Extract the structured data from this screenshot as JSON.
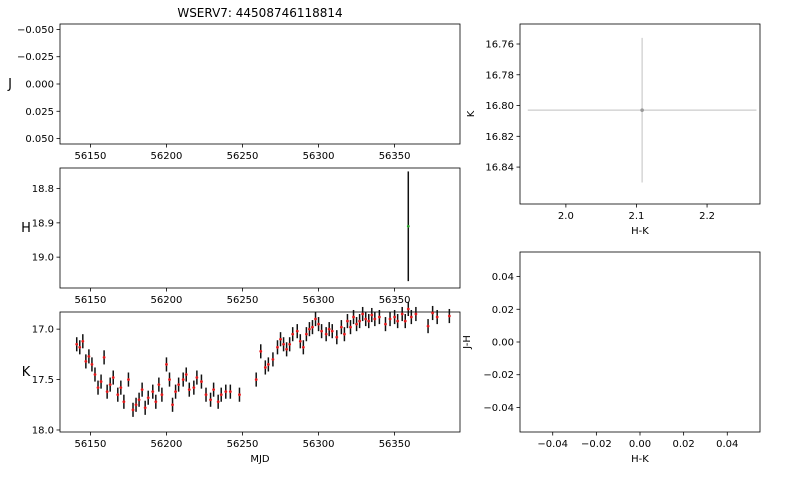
{
  "title": "WSERV7: 44508746118814",
  "chart_data": [
    {
      "id": "J-lc",
      "type": "scatter",
      "title": "WSERV7: 44508746118814",
      "ylabel": "J",
      "xlabel": "",
      "xlim": [
        56130,
        56393
      ],
      "ylim": [
        -0.055,
        0.055
      ],
      "yinverted": true,
      "xticks": [
        56150,
        56200,
        56250,
        56300,
        56350
      ],
      "yticks": [
        -0.05,
        -0.025,
        0.0,
        0.025,
        0.05
      ],
      "yticklabels": [
        "−0.050",
        "−0.025",
        "0.000",
        "0.025",
        "0.050"
      ],
      "points": []
    },
    {
      "id": "H-lc",
      "type": "scatter",
      "ylabel": "H",
      "xlabel": "",
      "xlim": [
        56130,
        56393
      ],
      "ylim": [
        18.74,
        19.09
      ],
      "yinverted": true,
      "xticks": [
        56150,
        56200,
        56250,
        56300,
        56350
      ],
      "yticks": [
        18.8,
        18.9,
        19.0
      ],
      "yticklabels": [
        "18.8",
        "18.9",
        "19.0"
      ],
      "points": [
        {
          "x": 56359,
          "y": 18.91,
          "err": 0.16
        }
      ]
    },
    {
      "id": "K-lc",
      "type": "scatter",
      "ylabel": "K",
      "xlabel": "MJD",
      "xlim": [
        56130,
        56393
      ],
      "ylim": [
        16.83,
        18.02
      ],
      "yinverted": true,
      "xticks": [
        56150,
        56200,
        56250,
        56300,
        56350
      ],
      "yticks": [
        17.0,
        17.5,
        18.0
      ],
      "yticklabels": [
        "17.0",
        "17.5",
        "18.0"
      ],
      "points": [
        {
          "x": 56141,
          "y": 17.15,
          "err": 0.07
        },
        {
          "x": 56143,
          "y": 17.18,
          "err": 0.07
        },
        {
          "x": 56145,
          "y": 17.12,
          "err": 0.07
        },
        {
          "x": 56147,
          "y": 17.32,
          "err": 0.07
        },
        {
          "x": 56149,
          "y": 17.27,
          "err": 0.07
        },
        {
          "x": 56151,
          "y": 17.35,
          "err": 0.07
        },
        {
          "x": 56153,
          "y": 17.45,
          "err": 0.07
        },
        {
          "x": 56155,
          "y": 17.58,
          "err": 0.07
        },
        {
          "x": 56157,
          "y": 17.52,
          "err": 0.07
        },
        {
          "x": 56159,
          "y": 17.28,
          "err": 0.07
        },
        {
          "x": 56161,
          "y": 17.62,
          "err": 0.07
        },
        {
          "x": 56163,
          "y": 17.55,
          "err": 0.07
        },
        {
          "x": 56165,
          "y": 17.48,
          "err": 0.07
        },
        {
          "x": 56168,
          "y": 17.65,
          "err": 0.07
        },
        {
          "x": 56170,
          "y": 17.58,
          "err": 0.07
        },
        {
          "x": 56172,
          "y": 17.72,
          "err": 0.07
        },
        {
          "x": 56175,
          "y": 17.5,
          "err": 0.07
        },
        {
          "x": 56178,
          "y": 17.8,
          "err": 0.07
        },
        {
          "x": 56180,
          "y": 17.75,
          "err": 0.07
        },
        {
          "x": 56182,
          "y": 17.7,
          "err": 0.07
        },
        {
          "x": 56184,
          "y": 17.6,
          "err": 0.07
        },
        {
          "x": 56186,
          "y": 17.78,
          "err": 0.07
        },
        {
          "x": 56188,
          "y": 17.68,
          "err": 0.07
        },
        {
          "x": 56191,
          "y": 17.62,
          "err": 0.07
        },
        {
          "x": 56193,
          "y": 17.72,
          "err": 0.07
        },
        {
          "x": 56195,
          "y": 17.55,
          "err": 0.07
        },
        {
          "x": 56197,
          "y": 17.65,
          "err": 0.07
        },
        {
          "x": 56200,
          "y": 17.35,
          "err": 0.07
        },
        {
          "x": 56202,
          "y": 17.5,
          "err": 0.07
        },
        {
          "x": 56204,
          "y": 17.75,
          "err": 0.07
        },
        {
          "x": 56206,
          "y": 17.62,
          "err": 0.07
        },
        {
          "x": 56208,
          "y": 17.55,
          "err": 0.07
        },
        {
          "x": 56211,
          "y": 17.5,
          "err": 0.07
        },
        {
          "x": 56213,
          "y": 17.45,
          "err": 0.07
        },
        {
          "x": 56215,
          "y": 17.6,
          "err": 0.07
        },
        {
          "x": 56218,
          "y": 17.58,
          "err": 0.07
        },
        {
          "x": 56220,
          "y": 17.48,
          "err": 0.07
        },
        {
          "x": 56223,
          "y": 17.52,
          "err": 0.07
        },
        {
          "x": 56226,
          "y": 17.65,
          "err": 0.07
        },
        {
          "x": 56229,
          "y": 17.7,
          "err": 0.07
        },
        {
          "x": 56231,
          "y": 17.6,
          "err": 0.07
        },
        {
          "x": 56234,
          "y": 17.72,
          "err": 0.07
        },
        {
          "x": 56236,
          "y": 17.65,
          "err": 0.07
        },
        {
          "x": 56239,
          "y": 17.62,
          "err": 0.07
        },
        {
          "x": 56242,
          "y": 17.62,
          "err": 0.07
        },
        {
          "x": 56248,
          "y": 17.65,
          "err": 0.07
        },
        {
          "x": 56259,
          "y": 17.5,
          "err": 0.07
        },
        {
          "x": 56262,
          "y": 17.22,
          "err": 0.07
        },
        {
          "x": 56265,
          "y": 17.38,
          "err": 0.07
        },
        {
          "x": 56267,
          "y": 17.35,
          "err": 0.07
        },
        {
          "x": 56270,
          "y": 17.3,
          "err": 0.07
        },
        {
          "x": 56273,
          "y": 17.18,
          "err": 0.07
        },
        {
          "x": 56275,
          "y": 17.1,
          "err": 0.07
        },
        {
          "x": 56277,
          "y": 17.15,
          "err": 0.07
        },
        {
          "x": 56279,
          "y": 17.2,
          "err": 0.07
        },
        {
          "x": 56281,
          "y": 17.15,
          "err": 0.07
        },
        {
          "x": 56283,
          "y": 17.05,
          "err": 0.07
        },
        {
          "x": 56286,
          "y": 17.02,
          "err": 0.07
        },
        {
          "x": 56288,
          "y": 17.12,
          "err": 0.07
        },
        {
          "x": 56290,
          "y": 17.18,
          "err": 0.07
        },
        {
          "x": 56292,
          "y": 17.05,
          "err": 0.07
        },
        {
          "x": 56294,
          "y": 17.0,
          "err": 0.07
        },
        {
          "x": 56296,
          "y": 16.98,
          "err": 0.07
        },
        {
          "x": 56298,
          "y": 16.9,
          "err": 0.07
        },
        {
          "x": 56300,
          "y": 16.95,
          "err": 0.07
        },
        {
          "x": 56302,
          "y": 17.02,
          "err": 0.07
        },
        {
          "x": 56305,
          "y": 17.05,
          "err": 0.07
        },
        {
          "x": 56307,
          "y": 17.0,
          "err": 0.07
        },
        {
          "x": 56309,
          "y": 17.02,
          "err": 0.07
        },
        {
          "x": 56312,
          "y": 17.08,
          "err": 0.07
        },
        {
          "x": 56315,
          "y": 16.98,
          "err": 0.07
        },
        {
          "x": 56317,
          "y": 17.05,
          "err": 0.07
        },
        {
          "x": 56319,
          "y": 16.92,
          "err": 0.07
        },
        {
          "x": 56321,
          "y": 16.98,
          "err": 0.07
        },
        {
          "x": 56323,
          "y": 16.88,
          "err": 0.07
        },
        {
          "x": 56325,
          "y": 16.95,
          "err": 0.07
        },
        {
          "x": 56327,
          "y": 16.92,
          "err": 0.07
        },
        {
          "x": 56329,
          "y": 16.85,
          "err": 0.07
        },
        {
          "x": 56331,
          "y": 16.9,
          "err": 0.07
        },
        {
          "x": 56333,
          "y": 16.92,
          "err": 0.07
        },
        {
          "x": 56335,
          "y": 16.86,
          "err": 0.07
        },
        {
          "x": 56337,
          "y": 16.9,
          "err": 0.07
        },
        {
          "x": 56340,
          "y": 16.88,
          "err": 0.07
        },
        {
          "x": 56344,
          "y": 16.95,
          "err": 0.07
        },
        {
          "x": 56347,
          "y": 16.9,
          "err": 0.07
        },
        {
          "x": 56350,
          "y": 16.88,
          "err": 0.07
        },
        {
          "x": 56352,
          "y": 16.92,
          "err": 0.07
        },
        {
          "x": 56355,
          "y": 16.85,
          "err": 0.07
        },
        {
          "x": 56357,
          "y": 16.92,
          "err": 0.07
        },
        {
          "x": 56359,
          "y": 16.8,
          "err": 0.07
        },
        {
          "x": 56361,
          "y": 16.88,
          "err": 0.07
        },
        {
          "x": 56364,
          "y": 16.85,
          "err": 0.07
        },
        {
          "x": 56372,
          "y": 16.97,
          "err": 0.07
        },
        {
          "x": 56375,
          "y": 16.84,
          "err": 0.07
        },
        {
          "x": 56378,
          "y": 16.88,
          "err": 0.07
        },
        {
          "x": 56386,
          "y": 16.87,
          "err": 0.07
        }
      ]
    },
    {
      "id": "K-vs-HK",
      "type": "scatter",
      "ylabel": "K",
      "xlabel": "H-K",
      "xlim": [
        1.935,
        2.275
      ],
      "ylim": [
        16.747,
        16.864
      ],
      "yinverted": true,
      "xticks": [
        2.0,
        2.1,
        2.2
      ],
      "xticklabels": [
        "2.0",
        "2.1",
        "2.2"
      ],
      "yticks": [
        16.76,
        16.78,
        16.8,
        16.82,
        16.84
      ],
      "yticklabels": [
        "16.76",
        "16.78",
        "16.80",
        "16.82",
        "16.84"
      ],
      "points": [
        {
          "x": 2.108,
          "y": 16.803,
          "xerr_lo": 0.162,
          "xerr_hi": 0.162,
          "err": 0.047
        }
      ]
    },
    {
      "id": "JH-vs-HK",
      "type": "scatter",
      "ylabel": "J-H",
      "xlabel": "H-K",
      "xlim": [
        -0.055,
        0.055
      ],
      "ylim": [
        -0.055,
        0.055
      ],
      "yinverted": false,
      "xticks": [
        -0.04,
        -0.02,
        0.0,
        0.02,
        0.04
      ],
      "xticklabels": [
        "−0.04",
        "−0.02",
        "0.00",
        "0.02",
        "0.04"
      ],
      "yticks": [
        -0.04,
        -0.02,
        0.0,
        0.02,
        0.04
      ],
      "yticklabels": [
        "−0.04",
        "−0.02",
        "0.00",
        "0.02",
        "0.04"
      ],
      "points": []
    }
  ]
}
